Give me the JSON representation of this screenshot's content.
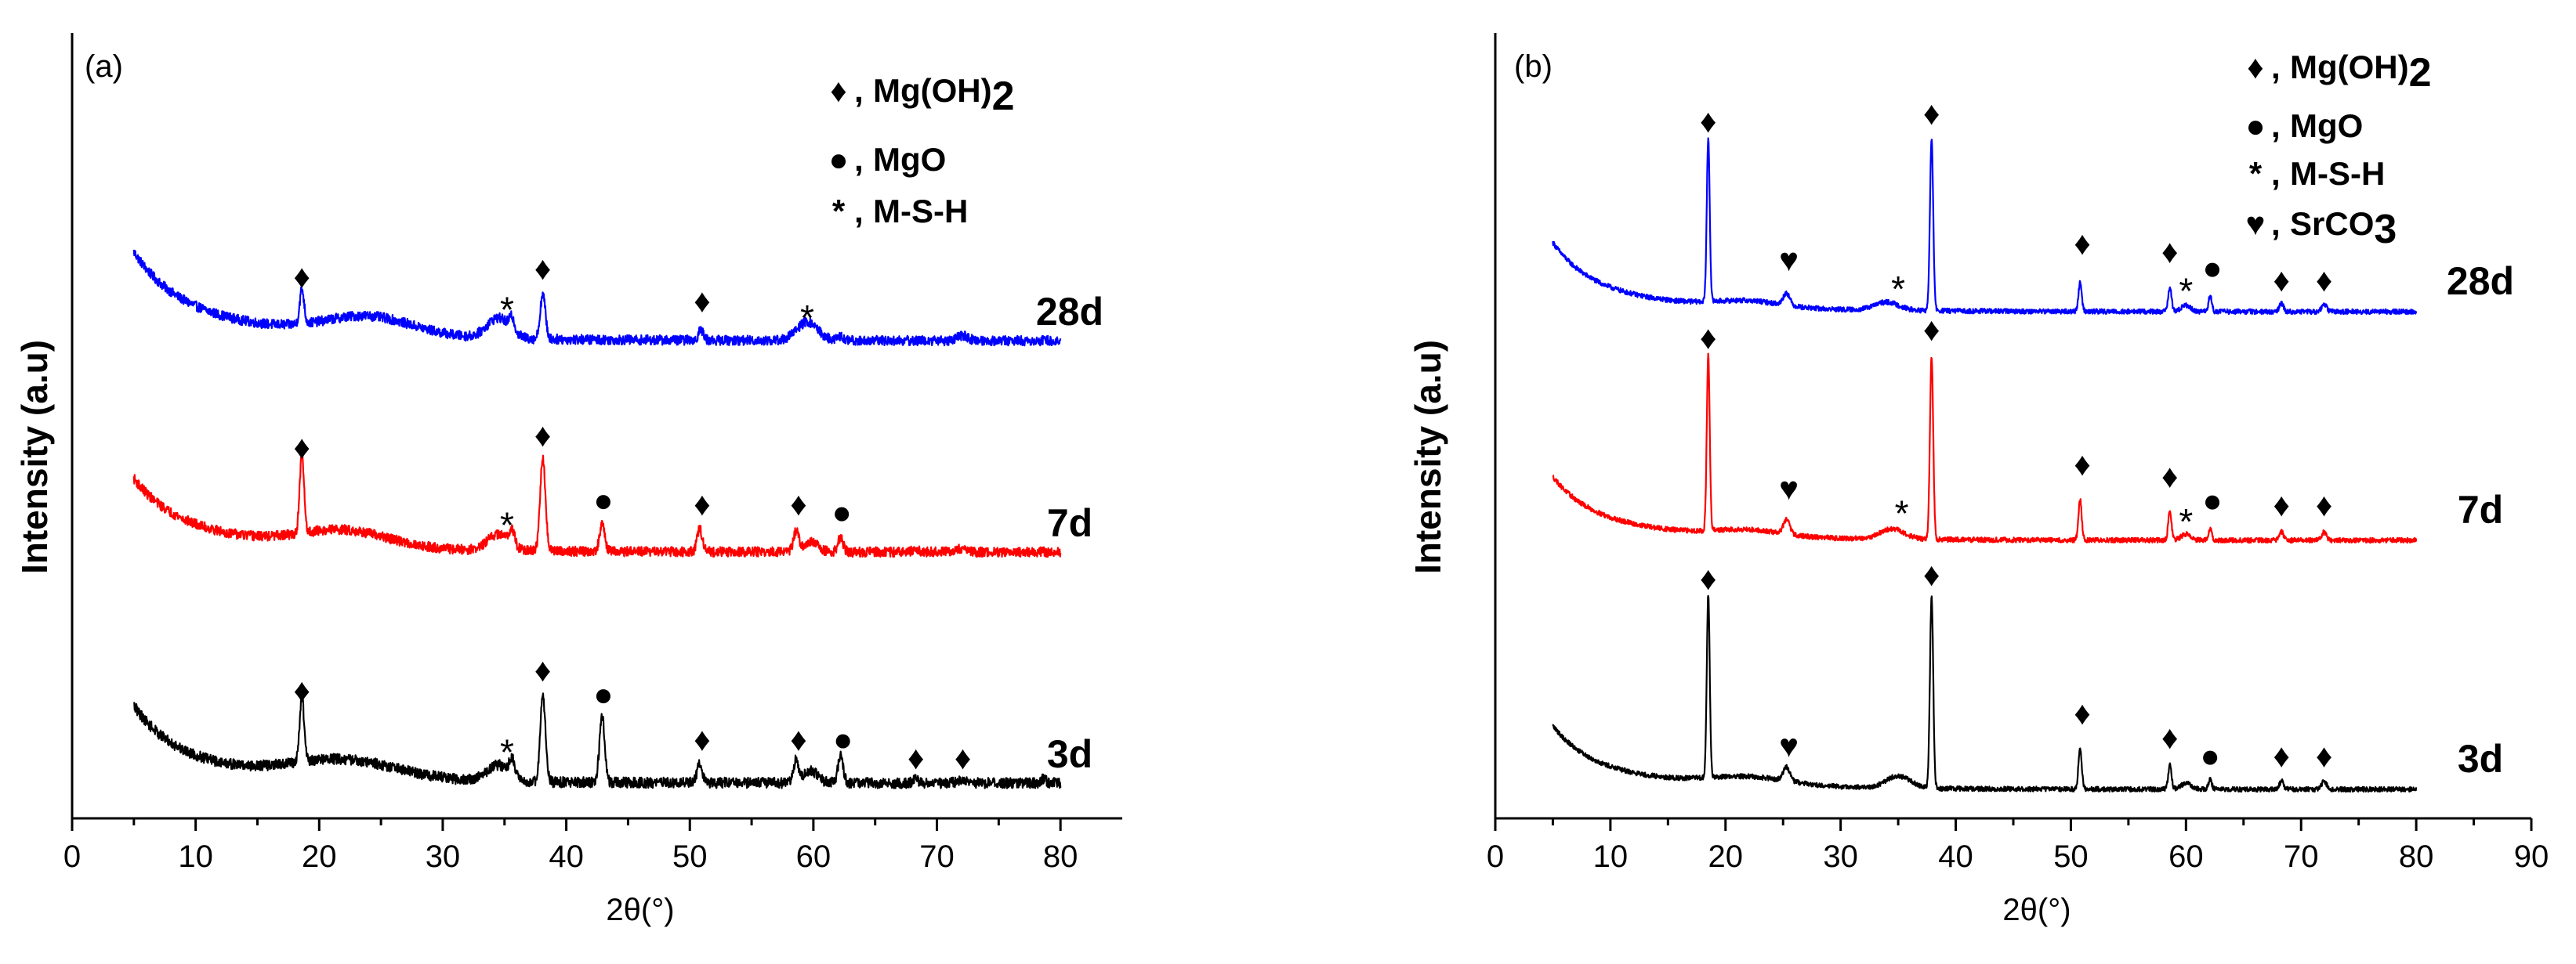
{
  "chart_data": [
    {
      "type": "line",
      "panel_label": "(a)",
      "xlabel": "2θ(°)",
      "ylabel": "Intensity (a.u)",
      "xlim": [
        0,
        85
      ],
      "xticks": [
        0,
        10,
        20,
        30,
        40,
        50,
        60,
        70,
        80
      ],
      "x_range": [
        5,
        80
      ],
      "legend": {
        "position": "top-right",
        "entries": [
          {
            "symbol": "♦",
            "label": "Mg(OH)2"
          },
          {
            "symbol": "●",
            "label": "MgO"
          },
          {
            "symbol": "*",
            "label": "M-S-H"
          }
        ]
      },
      "series": [
        {
          "name": "28d",
          "color": "#0000ff",
          "offset": 0.0,
          "start": 0.4,
          "decay": 0.12,
          "decay_tau": 3.2,
          "hump": 0.045,
          "hump_center": 24,
          "hump_width": 5,
          "noise": 0.012,
          "peaks": [
            {
              "x": 18.6,
              "h": 0.085,
              "w": 0.25
            },
            {
              "x": 34.5,
              "h": 0.05,
              "w": 1.3
            },
            {
              "x": 35.6,
              "h": 0.03,
              "w": 0.3
            },
            {
              "x": 38.1,
              "h": 0.11,
              "w": 0.3
            },
            {
              "x": 50.9,
              "h": 0.025,
              "w": 0.3
            },
            {
              "x": 59.5,
              "h": 0.045,
              "w": 1.2
            },
            {
              "x": 62.2,
              "h": 0.01,
              "w": 0.3
            },
            {
              "x": 72.1,
              "h": 0.012,
              "w": 0.6
            }
          ],
          "markers": [
            {
              "x": 18.6,
              "sym": "♦",
              "h": 0.13
            },
            {
              "x": 35.2,
              "sym": "*",
              "h": 0.08
            },
            {
              "x": 38.1,
              "sym": "♦",
              "h": 0.15
            },
            {
              "x": 51.0,
              "sym": "♦",
              "h": 0.07
            },
            {
              "x": 59.5,
              "sym": "*",
              "h": 0.06
            }
          ]
        },
        {
          "name": "7d",
          "color": "#ff0000",
          "offset": 0.0,
          "start": 0.34,
          "decay": 0.095,
          "decay_tau": 3.0,
          "hump": 0.04,
          "hump_center": 22,
          "hump_width": 5,
          "noise": 0.012,
          "peaks": [
            {
              "x": 18.6,
              "h": 0.19,
              "w": 0.25
            },
            {
              "x": 34.5,
              "h": 0.04,
              "w": 1.2
            },
            {
              "x": 35.6,
              "h": 0.04,
              "w": 0.3
            },
            {
              "x": 38.1,
              "h": 0.23,
              "w": 0.3
            },
            {
              "x": 42.9,
              "h": 0.065,
              "w": 0.3
            },
            {
              "x": 50.8,
              "h": 0.055,
              "w": 0.3
            },
            {
              "x": 58.6,
              "h": 0.05,
              "w": 0.3
            },
            {
              "x": 59.8,
              "h": 0.025,
              "w": 0.8
            },
            {
              "x": 62.2,
              "h": 0.035,
              "w": 0.3
            },
            {
              "x": 68.3,
              "h": 0.01,
              "w": 0.3
            },
            {
              "x": 72.1,
              "h": 0.01,
              "w": 0.5
            }
          ],
          "markers": [
            {
              "x": 18.6,
              "sym": "♦",
              "h": 0.23
            },
            {
              "x": 35.2,
              "sym": "*",
              "h": 0.07
            },
            {
              "x": 38.1,
              "sym": "♦",
              "h": 0.26
            },
            {
              "x": 43.0,
              "sym": "●",
              "h": 0.1
            },
            {
              "x": 51.0,
              "sym": "♦",
              "h": 0.09
            },
            {
              "x": 58.8,
              "sym": "♦",
              "h": 0.09
            },
            {
              "x": 62.3,
              "sym": "●",
              "h": 0.07
            }
          ]
        },
        {
          "name": "3d",
          "color": "#000000",
          "offset": 0.0,
          "start": 0.32,
          "decay": 0.12,
          "decay_tau": 3.2,
          "hump": 0.045,
          "hump_center": 22,
          "hump_width": 6,
          "noise": 0.013,
          "peaks": [
            {
              "x": 18.6,
              "h": 0.16,
              "w": 0.25
            },
            {
              "x": 34.5,
              "h": 0.04,
              "w": 1.3
            },
            {
              "x": 35.6,
              "h": 0.04,
              "w": 0.3
            },
            {
              "x": 38.1,
              "h": 0.21,
              "w": 0.3
            },
            {
              "x": 42.9,
              "h": 0.16,
              "w": 0.3
            },
            {
              "x": 50.8,
              "h": 0.045,
              "w": 0.3
            },
            {
              "x": 58.6,
              "h": 0.055,
              "w": 0.3
            },
            {
              "x": 59.8,
              "h": 0.03,
              "w": 0.8
            },
            {
              "x": 62.2,
              "h": 0.065,
              "w": 0.3
            },
            {
              "x": 68.3,
              "h": 0.01,
              "w": 0.3
            },
            {
              "x": 72.1,
              "h": 0.01,
              "w": 0.5
            },
            {
              "x": 78.6,
              "h": 0.01,
              "w": 0.3
            }
          ],
          "markers": [
            {
              "x": 18.6,
              "sym": "♦",
              "h": 0.2
            },
            {
              "x": 35.2,
              "sym": "*",
              "h": 0.08
            },
            {
              "x": 38.1,
              "sym": "♦",
              "h": 0.25
            },
            {
              "x": 43.0,
              "sym": "●",
              "h": 0.19
            },
            {
              "x": 51.0,
              "sym": "♦",
              "h": 0.08
            },
            {
              "x": 58.8,
              "sym": "♦",
              "h": 0.08
            },
            {
              "x": 62.4,
              "sym": "●",
              "h": 0.08
            },
            {
              "x": 68.3,
              "sym": "♦",
              "h": 0.035
            },
            {
              "x": 72.1,
              "sym": "♦",
              "h": 0.035
            }
          ]
        }
      ]
    },
    {
      "type": "line",
      "panel_label": "(b)",
      "xlabel": "2θ(°)",
      "ylabel": "Intensity (a.u)",
      "xlim": [
        0,
        90
      ],
      "xticks": [
        0,
        10,
        20,
        30,
        40,
        50,
        60,
        70,
        80,
        90
      ],
      "x_range": [
        5,
        80
      ],
      "legend": {
        "position": "top-right",
        "entries": [
          {
            "symbol": "♦",
            "label": "Mg(OH)2"
          },
          {
            "symbol": "●",
            "label": "MgO"
          },
          {
            "symbol": "*",
            "label": "M-S-H"
          },
          {
            "symbol": "♥",
            "label": "SrCO3"
          }
        ]
      },
      "series": [
        {
          "name": "28d",
          "color": "#0000ff",
          "start": 0.3,
          "decay": 0.1,
          "decay_tau": 3.0,
          "hump": 0.015,
          "hump_center": 22,
          "hump_width": 4,
          "noise": 0.006,
          "peaks": [
            {
              "x": 18.5,
              "h": 0.4,
              "w": 0.18
            },
            {
              "x": 25.3,
              "h": 0.03,
              "w": 0.4
            },
            {
              "x": 34.0,
              "h": 0.02,
              "w": 1.5
            },
            {
              "x": 37.9,
              "h": 0.42,
              "w": 0.2
            },
            {
              "x": 50.8,
              "h": 0.07,
              "w": 0.2
            },
            {
              "x": 58.6,
              "h": 0.06,
              "w": 0.2
            },
            {
              "x": 60.0,
              "h": 0.015,
              "w": 0.6
            },
            {
              "x": 62.1,
              "h": 0.04,
              "w": 0.2
            },
            {
              "x": 68.3,
              "h": 0.02,
              "w": 0.25
            },
            {
              "x": 72.0,
              "h": 0.02,
              "w": 0.3
            }
          ],
          "markers": [
            {
              "x": 18.5,
              "sym": "♦",
              "h": 0.44
            },
            {
              "x": 25.5,
              "sym": "♥",
              "h": 0.1
            },
            {
              "x": 35.0,
              "sym": "*",
              "h": 0.06
            },
            {
              "x": 37.9,
              "sym": "♦",
              "h": 0.46
            },
            {
              "x": 51.0,
              "sym": "♦",
              "h": 0.14
            },
            {
              "x": 58.6,
              "sym": "♦",
              "h": 0.12
            },
            {
              "x": 60.0,
              "sym": "*",
              "h": 0.055
            },
            {
              "x": 62.3,
              "sym": "●",
              "h": 0.08
            },
            {
              "x": 68.3,
              "sym": "♦",
              "h": 0.05
            },
            {
              "x": 72.0,
              "sym": "♦",
              "h": 0.05
            }
          ]
        },
        {
          "name": "7d",
          "color": "#ff0000",
          "start": 0.28,
          "decay": 0.09,
          "decay_tau": 3.0,
          "hump": 0.015,
          "hump_center": 22,
          "hump_width": 4,
          "noise": 0.006,
          "peaks": [
            {
              "x": 18.5,
              "h": 0.43,
              "w": 0.18
            },
            {
              "x": 25.3,
              "h": 0.035,
              "w": 0.4
            },
            {
              "x": 34.5,
              "h": 0.025,
              "w": 1.5
            },
            {
              "x": 37.9,
              "h": 0.45,
              "w": 0.2
            },
            {
              "x": 50.8,
              "h": 0.1,
              "w": 0.2
            },
            {
              "x": 58.6,
              "h": 0.07,
              "w": 0.2
            },
            {
              "x": 60.0,
              "h": 0.015,
              "w": 0.6
            },
            {
              "x": 62.1,
              "h": 0.03,
              "w": 0.2
            },
            {
              "x": 68.3,
              "h": 0.02,
              "w": 0.25
            },
            {
              "x": 72.0,
              "h": 0.02,
              "w": 0.3
            }
          ],
          "markers": [
            {
              "x": 18.5,
              "sym": "♦",
              "h": 0.47
            },
            {
              "x": 25.5,
              "sym": "♥",
              "h": 0.1
            },
            {
              "x": 35.3,
              "sym": "*",
              "h": 0.07
            },
            {
              "x": 37.9,
              "sym": "♦",
              "h": 0.49
            },
            {
              "x": 51.0,
              "sym": "♦",
              "h": 0.16
            },
            {
              "x": 58.6,
              "sym": "♦",
              "h": 0.13
            },
            {
              "x": 60.0,
              "sym": "*",
              "h": 0.05
            },
            {
              "x": 62.3,
              "sym": "●",
              "h": 0.07
            },
            {
              "x": 68.3,
              "sym": "♦",
              "h": 0.06
            },
            {
              "x": 72.0,
              "sym": "♦",
              "h": 0.06
            }
          ]
        },
        {
          "name": "3d",
          "color": "#000000",
          "start": 0.28,
          "decay": 0.09,
          "decay_tau": 3.0,
          "hump": 0.02,
          "hump_center": 22,
          "hump_width": 5,
          "noise": 0.006,
          "peaks": [
            {
              "x": 18.5,
              "h": 0.45,
              "w": 0.18
            },
            {
              "x": 25.3,
              "h": 0.035,
              "w": 0.4
            },
            {
              "x": 35.0,
              "h": 0.03,
              "w": 1.5
            },
            {
              "x": 37.9,
              "h": 0.47,
              "w": 0.2
            },
            {
              "x": 50.8,
              "h": 0.1,
              "w": 0.2
            },
            {
              "x": 58.6,
              "h": 0.06,
              "w": 0.2
            },
            {
              "x": 60.0,
              "h": 0.015,
              "w": 0.6
            },
            {
              "x": 62.1,
              "h": 0.025,
              "w": 0.2
            },
            {
              "x": 68.3,
              "h": 0.02,
              "w": 0.25
            },
            {
              "x": 72.0,
              "h": 0.02,
              "w": 0.3
            }
          ],
          "markers": [
            {
              "x": 18.5,
              "sym": "♦",
              "h": 0.49
            },
            {
              "x": 25.5,
              "sym": "♥",
              "h": 0.08
            },
            {
              "x": 37.9,
              "sym": "♦",
              "h": 0.5
            },
            {
              "x": 51.0,
              "sym": "♦",
              "h": 0.16
            },
            {
              "x": 58.6,
              "sym": "♦",
              "h": 0.1
            },
            {
              "x": 62.1,
              "sym": "●",
              "h": 0.055
            },
            {
              "x": 68.3,
              "sym": "♦",
              "h": 0.055
            },
            {
              "x": 72.0,
              "sym": "♦",
              "h": 0.055
            }
          ]
        }
      ]
    }
  ]
}
